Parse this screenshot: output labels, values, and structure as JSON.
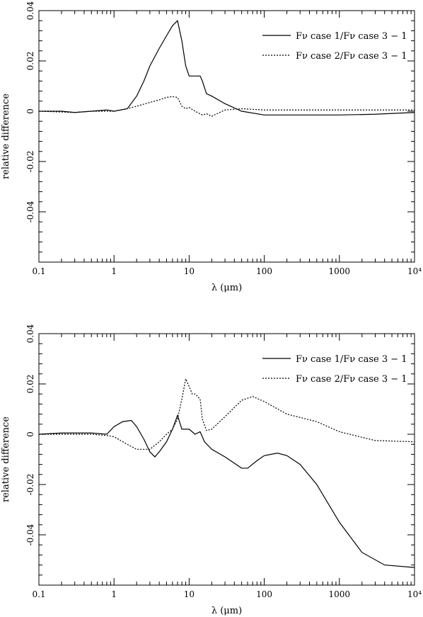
{
  "chart_data": [
    {
      "type": "line",
      "xscale": "log",
      "xlim": [
        0.1,
        10000
      ],
      "ylim": [
        -0.06,
        0.04
      ],
      "xticks": [
        "0.1",
        "1",
        "10",
        "100",
        "1000",
        "10⁴"
      ],
      "yticks": [
        "0.04",
        "0.02",
        "0",
        "-0.02",
        "-0.04"
      ],
      "xlabel": "λ (μm)",
      "ylabel": "relative difference",
      "legend_position": "top-right",
      "series": [
        {
          "name": "Fν case 1/Fν case 3 − 1",
          "style": "solid",
          "x": [
            0.1,
            0.2,
            0.3,
            0.5,
            0.8,
            1.0,
            1.5,
            2.0,
            2.5,
            3.0,
            4.0,
            5.0,
            6.0,
            7.0,
            8.0,
            9.0,
            10.0,
            12.0,
            14.0,
            15.0,
            17.0,
            20.0,
            30.0,
            50.0,
            100.0,
            300.0,
            1000.0,
            3000.0,
            10000.0
          ],
          "y": [
            0.0,
            0.0,
            -0.0005,
            0.0,
            0.0005,
            0.0,
            0.001,
            0.006,
            0.012,
            0.018,
            0.025,
            0.03,
            0.034,
            0.036,
            0.028,
            0.018,
            0.014,
            0.014,
            0.014,
            0.012,
            0.007,
            0.006,
            0.003,
            0.0,
            -0.0015,
            -0.0015,
            -0.0015,
            -0.0012,
            -0.0005
          ]
        },
        {
          "name": "Fν case 2/Fν case 3 − 1",
          "style": "dotted",
          "x": [
            0.1,
            0.3,
            0.5,
            0.8,
            1.0,
            1.5,
            2.0,
            3.0,
            4.0,
            5.0,
            6.0,
            7.0,
            8.0,
            9.0,
            10.0,
            12.0,
            15.0,
            17.0,
            20.0,
            30.0,
            50.0,
            100.0,
            1000.0,
            10000.0
          ],
          "y": [
            0.0,
            -0.0005,
            0.0,
            0.0,
            0.0,
            0.001,
            0.002,
            0.0035,
            0.0045,
            0.0055,
            0.0058,
            0.0055,
            0.002,
            0.001,
            0.0015,
            0.0,
            -0.0015,
            -0.001,
            -0.002,
            0.0005,
            0.001,
            0.0005,
            0.0005,
            0.0005
          ]
        }
      ]
    },
    {
      "type": "line",
      "xscale": "log",
      "xlim": [
        0.1,
        10000
      ],
      "ylim": [
        -0.06,
        0.04
      ],
      "xticks": [
        "0.1",
        "1",
        "10",
        "100",
        "1000",
        "10⁴"
      ],
      "yticks": [
        "0.04",
        "0.02",
        "0",
        "-0.02",
        "-0.04"
      ],
      "xlabel": "λ (μm)",
      "ylabel": "relative difference",
      "legend_position": "top-right",
      "series": [
        {
          "name": "Fν case 1/Fν case 3 − 1",
          "style": "solid",
          "x": [
            0.1,
            0.2,
            0.3,
            0.5,
            0.8,
            1.0,
            1.3,
            1.7,
            2.0,
            2.5,
            3.0,
            3.5,
            4.0,
            5.0,
            6.0,
            7.0,
            8.0,
            9.0,
            10.0,
            12.0,
            14.0,
            16.0,
            20.0,
            30.0,
            50.0,
            60.0,
            80.0,
            100.0,
            150.0,
            200.0,
            300.0,
            500.0,
            1000.0,
            2000.0,
            4000.0,
            10000.0
          ],
          "y": [
            0.0,
            0.0005,
            0.0005,
            0.0005,
            0.0,
            0.003,
            0.005,
            0.0055,
            0.003,
            -0.002,
            -0.007,
            -0.009,
            -0.007,
            -0.003,
            0.002,
            0.0075,
            0.002,
            0.002,
            0.002,
            0.0,
            0.001,
            -0.003,
            -0.006,
            -0.009,
            -0.0135,
            -0.0135,
            -0.0105,
            -0.0085,
            -0.0075,
            -0.0085,
            -0.012,
            -0.02,
            -0.035,
            -0.047,
            -0.052,
            -0.053
          ]
        },
        {
          "name": "Fν case 2/Fν case 3 − 1",
          "style": "dotted",
          "x": [
            0.1,
            0.3,
            0.5,
            0.8,
            1.0,
            1.5,
            2.0,
            3.0,
            4.0,
            5.0,
            6.0,
            7.0,
            8.0,
            9.0,
            10.0,
            11.0,
            12.0,
            14.0,
            15.0,
            17.0,
            20.0,
            30.0,
            50.0,
            70.0,
            100.0,
            200.0,
            500.0,
            1000.0,
            3000.0,
            10000.0
          ],
          "y": [
            0.0,
            0.0,
            0.0,
            -0.0005,
            -0.001,
            -0.004,
            -0.006,
            -0.006,
            -0.003,
            0.0,
            0.002,
            0.006,
            0.014,
            0.022,
            0.019,
            0.016,
            0.016,
            0.014,
            0.006,
            0.0015,
            0.002,
            0.007,
            0.0135,
            0.015,
            0.013,
            0.008,
            0.005,
            0.001,
            -0.0025,
            -0.003
          ]
        }
      ]
    }
  ]
}
